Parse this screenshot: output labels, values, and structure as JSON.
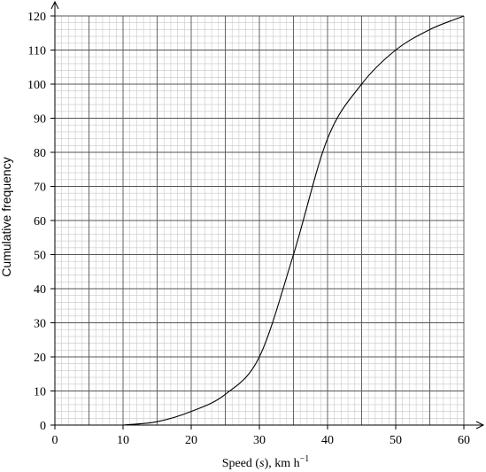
{
  "chart_data": {
    "type": "line",
    "title": "",
    "xlabel": {
      "prefix": "Speed (",
      "variable": "s",
      "middle": "), km h",
      "superscript": "−1"
    },
    "ylabel": "Cumulative frequency",
    "xlim": [
      0,
      60
    ],
    "ylim": [
      0,
      120
    ],
    "x_ticks": [
      0,
      10,
      20,
      30,
      40,
      50,
      60
    ],
    "y_ticks": [
      0,
      10,
      20,
      30,
      40,
      50,
      60,
      70,
      80,
      90,
      100,
      110,
      120
    ],
    "x_tick_labels": [
      "0",
      "10",
      "20",
      "30",
      "40",
      "50",
      "60"
    ],
    "y_tick_labels": [
      "0",
      "10",
      "20",
      "30",
      "40",
      "50",
      "60",
      "70",
      "80",
      "90",
      "100",
      "110",
      "120"
    ],
    "grid": {
      "major_x_step": 5,
      "major_y_step": 10,
      "minor_x_step": 1,
      "minor_y_step": 2
    },
    "series": [
      {
        "x": [
          10,
          15,
          20,
          25,
          30,
          35,
          40,
          45,
          50,
          55,
          60
        ],
        "y": [
          0,
          1,
          4,
          9,
          20,
          50,
          84,
          100,
          110,
          116,
          120
        ]
      }
    ]
  }
}
